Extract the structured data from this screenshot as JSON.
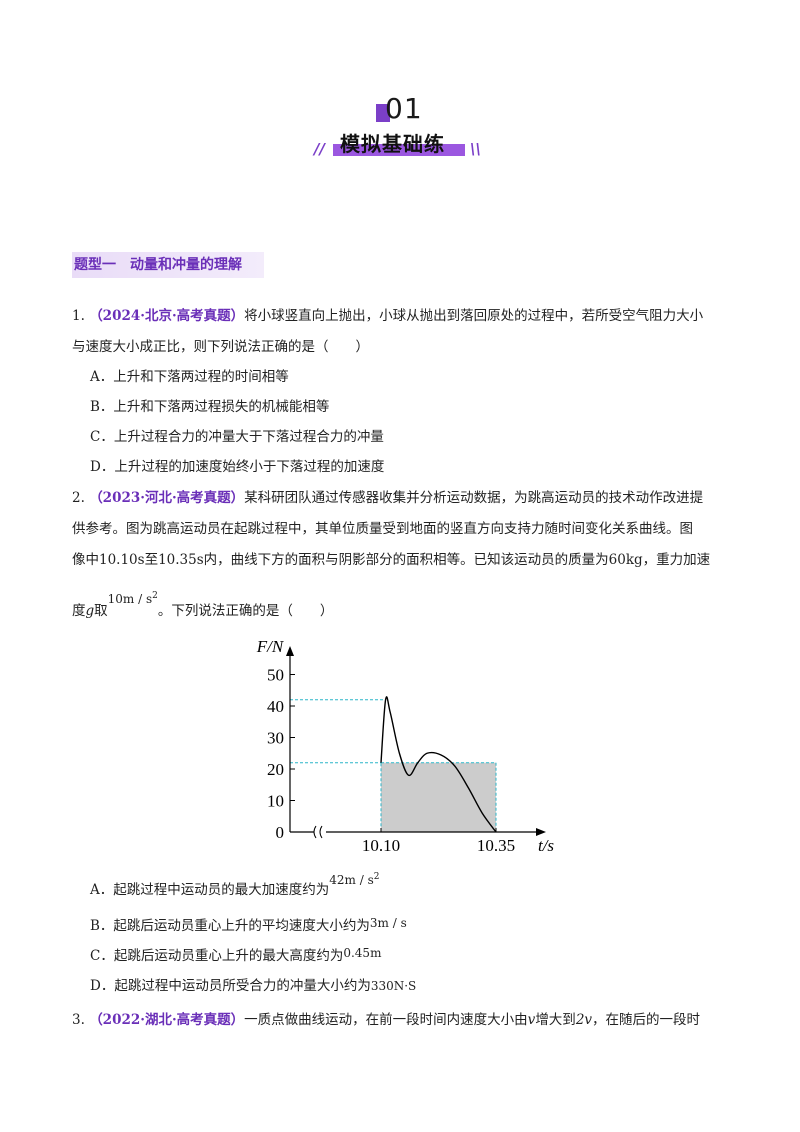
{
  "header": {
    "number": "01",
    "title": "模拟基础练",
    "deco_left": "//",
    "deco_right": "\\\\"
  },
  "section": {
    "title": "题型一　动量和冲量的理解"
  },
  "q1": {
    "num": "1.",
    "source": "（2024·北京·高考真题）",
    "stem_line1": "将小球竖直向上抛出，小球从抛出到落回原处的过程中，若所受空气阻力大小",
    "stem_line2": "与速度大小成正比，则下列说法正确的是（　　）",
    "options": [
      "A．上升和下落两过程的时间相等",
      "B．上升和下落两过程损失的机械能相等",
      "C．上升过程合力的冲量大于下落过程合力的冲量",
      "D．上升过程的加速度始终小于下落过程的加速度"
    ]
  },
  "q2": {
    "num": "2.",
    "source": "（2023·河北·高考真题）",
    "stem_line1": "某科研团队通过传感器收集并分析运动数据，为跳高运动员的技术动作改进提",
    "stem_line2": "供参考。图为跳高运动员在起跳过程中，其单位质量受到地面的竖直方向支持力随时间变化关系曲线。图",
    "stem_line3a": "像中10.10s至10.35s内，曲线下方的面积与阴影部分的面积相等。已知该运动员的质量为",
    "stem_line3_mass": "60kg",
    "stem_line3b": "，重力加速",
    "stem_line4a": "度",
    "stem_line4_g": "g",
    "stem_line4b": "取",
    "stem_line4_val": "10m / s",
    "stem_line4_exp": "2",
    "stem_line4c": "。下列说法正确的是（　　）",
    "options": [
      {
        "text": "A．起跳过程中运动员的最大加速度约为",
        "math": "42m / s",
        "exp": "2"
      },
      {
        "text": "B．起跳后运动员重心上升的平均速度大小约为",
        "math": "3m / s",
        "exp": ""
      },
      {
        "text": "C．起跳后运动员重心上升的最大高度约为",
        "math": "0.45m",
        "exp": ""
      },
      {
        "text": "D．起跳过程中运动员所受合力的冲量大小约为",
        "math": "330N·S",
        "exp": ""
      }
    ]
  },
  "q3": {
    "num": "3.",
    "source": "（2022·湖北·高考真题）",
    "stem_line1a": "一质点做曲线运动，在前一段时间内速度大小由",
    "v1": "v",
    "stem_line1b": "增大到",
    "v2": "2v",
    "stem_line1c": "，在随后的一段时"
  },
  "chart_data": {
    "type": "line",
    "title": "",
    "ylabel": "F/N",
    "xlabel": "t/s",
    "y_ticks": [
      "0",
      "10",
      "20",
      "30",
      "40",
      "50"
    ],
    "x_ticks": [
      "10.10",
      "10.35"
    ],
    "ylim": [
      0,
      55
    ],
    "axis_break": true,
    "curve": {
      "x": [
        10.1,
        10.11,
        10.12,
        10.14,
        10.16,
        10.18,
        10.2,
        10.23,
        10.26,
        10.29,
        10.32,
        10.35
      ],
      "y": [
        22,
        42,
        38,
        25,
        18,
        22,
        25,
        24.5,
        21,
        14,
        6,
        0
      ]
    },
    "dashed_levels": [
      42,
      22
    ],
    "shaded_rect": {
      "x": [
        10.1,
        10.35
      ],
      "y": [
        0,
        22
      ]
    },
    "colors": {
      "dashed": "#2bb5c8",
      "shade": "#cccccc",
      "curve": "#000000"
    }
  }
}
